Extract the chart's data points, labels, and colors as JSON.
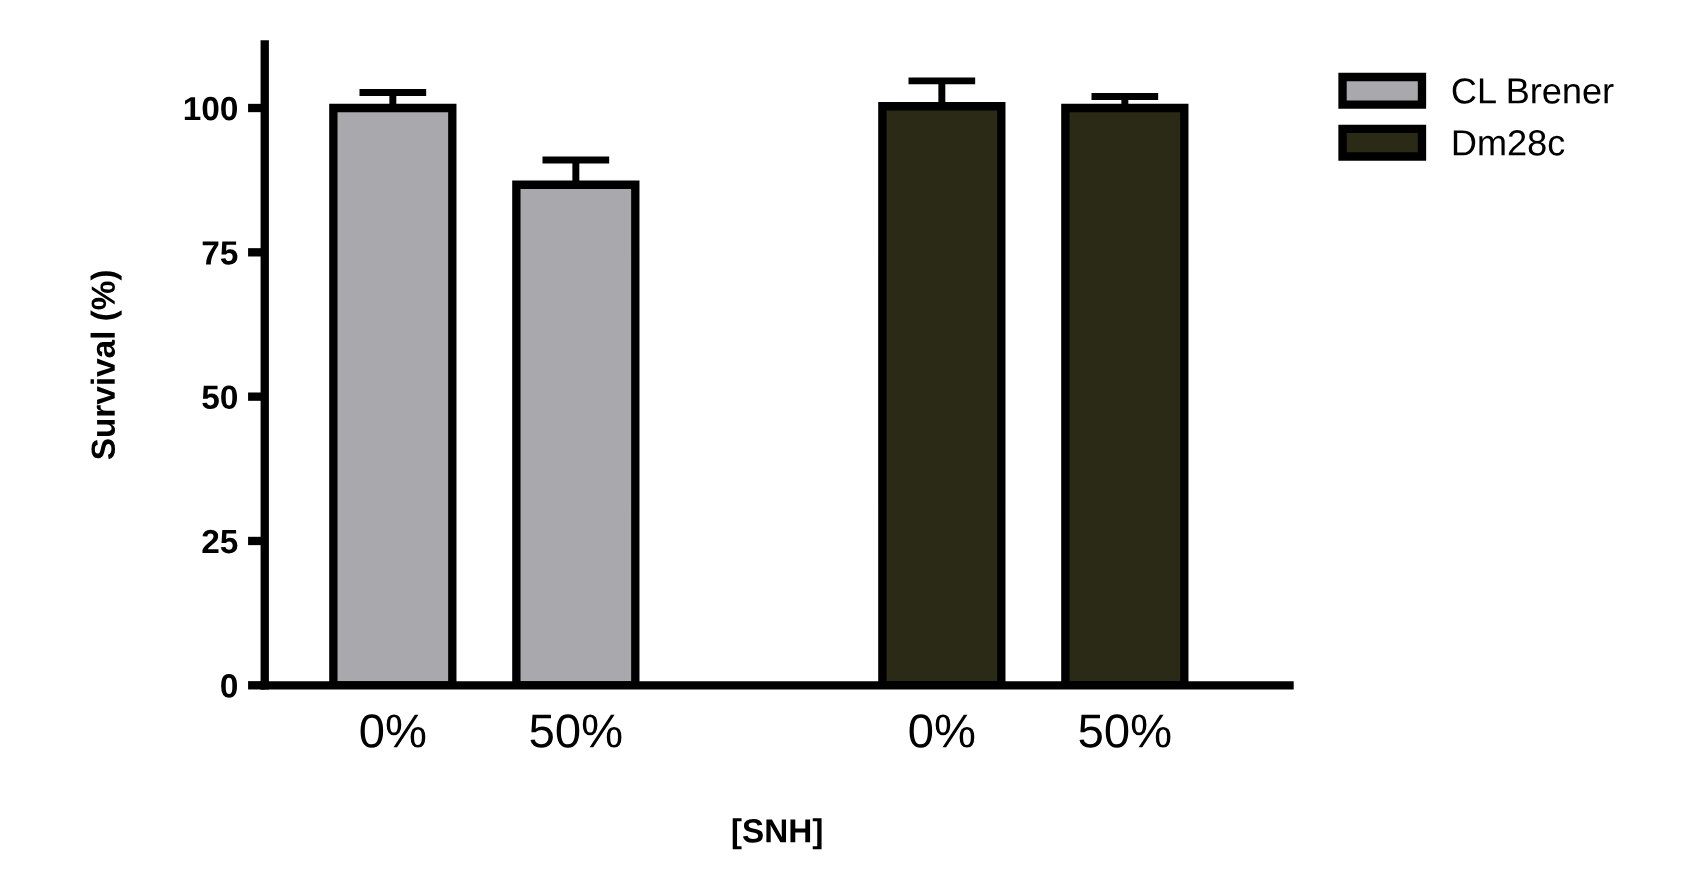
{
  "chart_data": {
    "type": "bar",
    "xlabel": "[SNH]",
    "ylabel": "Survival (%)",
    "categories": [
      "0%",
      "50%",
      null,
      "0%",
      "50%"
    ],
    "series": [
      {
        "name": "CL Brener",
        "color": "#a9a9ad",
        "values": [
          100,
          86.7,
          null,
          null,
          null
        ],
        "errors": [
          [
            100,
            102.7
          ],
          [
            86.7,
            91
          ],
          null,
          null,
          null
        ]
      },
      {
        "name": "Dm28c",
        "color": "#2b2a17",
        "values": [
          null,
          null,
          null,
          100.3,
          100
        ],
        "errors": [
          null,
          null,
          null,
          [
            100.3,
            104.7
          ],
          [
            100,
            102
          ]
        ]
      }
    ],
    "ylim": [
      0,
      111
    ],
    "yticks": [
      0,
      25,
      50,
      75,
      100
    ],
    "grid": false,
    "legend": "top right"
  }
}
